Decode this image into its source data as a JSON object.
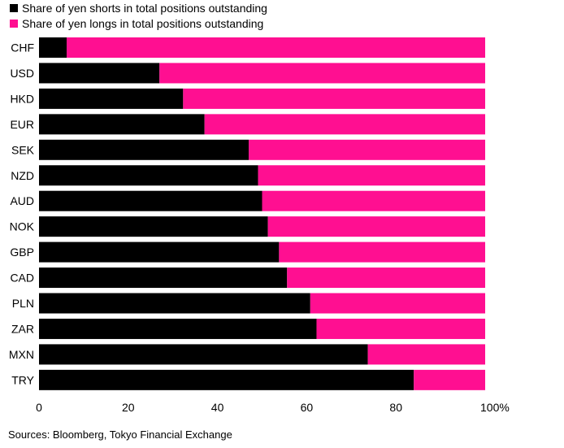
{
  "legend": {
    "shorts_label": "Share of yen shorts in total positions outstanding",
    "longs_label": "Share of yen longs in total positions outstanding"
  },
  "source": "Sources: Bloomberg, Tokyo Financial Exchange",
  "colors": {
    "shorts": "#000000",
    "longs": "#ff0f91"
  },
  "chart_data": {
    "type": "bar",
    "orientation": "horizontal",
    "stacked": true,
    "categories": [
      "CHF",
      "USD",
      "HKD",
      "EUR",
      "SEK",
      "NZD",
      "AUD",
      "NOK",
      "GBP",
      "CAD",
      "PLN",
      "ZAR",
      "MXN",
      "TRY"
    ],
    "series": [
      {
        "name": "Share of yen shorts in total positions outstanding",
        "values": [
          6.2,
          27,
          32.3,
          37.1,
          47,
          49.1,
          50,
          51.3,
          53.8,
          55.6,
          60.8,
          62.2,
          73.7,
          84
        ]
      },
      {
        "name": "Share of yen longs in total positions outstanding",
        "values": [
          93.8,
          73,
          67.7,
          62.9,
          53,
          50.9,
          50,
          48.7,
          46.2,
          44.4,
          39.2,
          37.8,
          26.3,
          16
        ]
      }
    ],
    "xlim": [
      0,
      100
    ],
    "xticks": [
      0,
      20,
      40,
      60,
      80,
      100
    ],
    "xtick_labels": [
      "0",
      "20",
      "40",
      "60",
      "80",
      "100%"
    ],
    "grid": false,
    "legend_position": "top-left"
  }
}
